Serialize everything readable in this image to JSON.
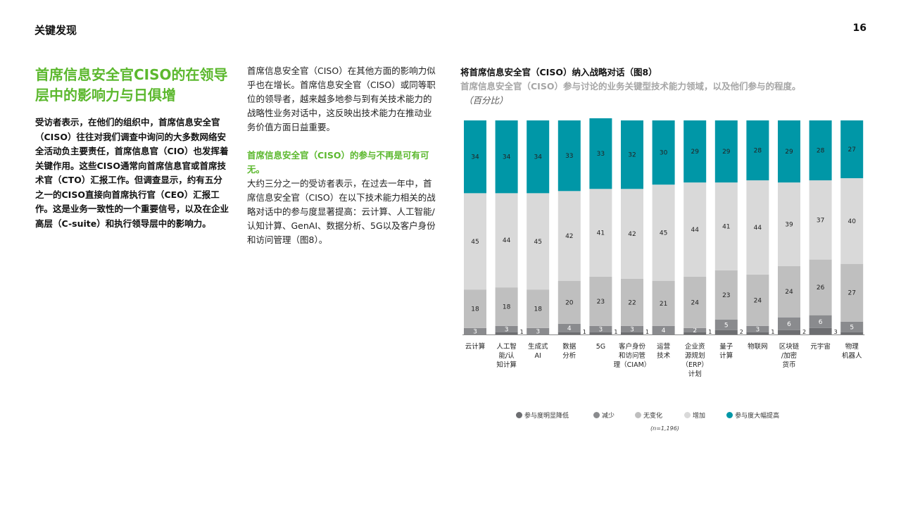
{
  "header": {
    "title": "关键发现",
    "page_number": "16"
  },
  "left_column": {
    "headline": "首席信息安全官CISO的在领导层中的影响力与日俱增",
    "lead": "受访者表示，在他们的组织中，首席信息安全官（CISO）往往对我们调查中询问的大多数网络安全活动负主要责任，首席信息官（CIO）也发挥着关键作用。这些CISO通常向首席信息官或首席技术官（CTO）汇报工作。但调查显示，约有五分之一的CISO直接向首席执行官（CEO）汇报工作。这是业务一致性的一个重要信号，以及在企业高层（C-suite）和执行领导层中的影响力。"
  },
  "middle_column": {
    "paragraph1": "首席信息安全官（CISO）在其他方面的影响力似乎也在增长。首席信息安全官（CISO）或同等职位的领导者，越来越多地参与到有关技术能力的战略性业务对话中，这反映出技术能力在推动业务价值方面日益重要。",
    "subheading": "首席信息安全官（CISO）的参与不再是可有可无。",
    "paragraph2": "大约三分之一的受访者表示，在过去一年中，首席信息安全官（CISO）在以下技术能力相关的战略对话中的参与度显著提高：云计算、人工智能/认知计算、GenAI、数据分析、5G以及客户身份和访问管理（图8）。"
  },
  "chart_data": {
    "type": "bar",
    "stacked": true,
    "title": "将首席信息安全官（CISO）纳入战略对话（图8）",
    "subtitle": "首席信息安全官（CISO）参与讨论的业务关键型技术能力领域，以及他们参与的程度。",
    "unit": "（百分比）",
    "sample_note": "(n=1,196)",
    "ylim": [
      0,
      100
    ],
    "grid": false,
    "legend_position": "bottom",
    "categories": [
      [
        "云计算"
      ],
      [
        "人工智",
        "能/认",
        "知计算"
      ],
      [
        "生成式",
        "AI"
      ],
      [
        "数据",
        "分析"
      ],
      [
        "5G"
      ],
      [
        "客户身份",
        "和访问管",
        "理（CIAM）"
      ],
      [
        "运营",
        "技术"
      ],
      [
        "企业资",
        "源规划",
        "（ERP）",
        "计划"
      ],
      [
        "量子",
        "计算"
      ],
      [
        "物联网"
      ],
      [
        "区块链",
        "/加密",
        "货币"
      ],
      [
        "元宇宙"
      ],
      [
        "物理",
        "机器人"
      ]
    ],
    "series": [
      {
        "name": "参与度明显降低",
        "color": "#6d6e71",
        "values": [
          0,
          1,
          0,
          1,
          1,
          1,
          0,
          1,
          2,
          1,
          2,
          3,
          1
        ]
      },
      {
        "name": "减少",
        "color": "#8a8b8e",
        "values": [
          3,
          3,
          3,
          4,
          3,
          3,
          4,
          2,
          5,
          3,
          6,
          6,
          5
        ]
      },
      {
        "name": "无变化",
        "color": "#bfbfbf",
        "values": [
          18,
          18,
          18,
          20,
          23,
          22,
          21,
          24,
          23,
          24,
          24,
          26,
          27
        ]
      },
      {
        "name": "增加",
        "color": "#d9d9d9",
        "values": [
          45,
          44,
          45,
          42,
          41,
          42,
          45,
          44,
          41,
          44,
          39,
          37,
          40
        ]
      },
      {
        "name": "参与度大幅提高",
        "color": "#0097a7",
        "values": [
          34,
          34,
          34,
          33,
          33,
          32,
          30,
          29,
          29,
          28,
          29,
          28,
          27
        ]
      }
    ]
  }
}
